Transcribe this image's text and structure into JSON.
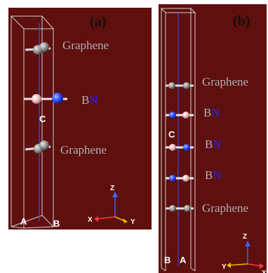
{
  "panel_a": {
    "label": "(a)",
    "layers": [
      {
        "label": "Graphene"
      },
      {
        "label_b": "B",
        "label_n": "N"
      },
      {
        "label": "Graphene"
      }
    ],
    "cell_axes": {
      "c": "C",
      "a": "A",
      "b": "B"
    },
    "triad": {
      "x": "X",
      "y": "Y",
      "z": "Z"
    }
  },
  "panel_b": {
    "label": "(b)",
    "layers": [
      {
        "label": "Graphene"
      },
      {
        "label_b": "B",
        "label_n": "N"
      },
      {
        "label_b": "B",
        "label_n": "N"
      },
      {
        "label_b": "B",
        "label_n": "N"
      },
      {
        "label": "Graphene"
      }
    ],
    "cell_axes": {
      "c": "C",
      "a": "A",
      "b": "B"
    },
    "triad": {
      "x": "X",
      "y": "Y",
      "z": "Z"
    }
  },
  "colors": {
    "background": "#5e0f0e",
    "carbon": "#9a9a9a",
    "boron": "#f2c8c8",
    "nitrogen": "#2b4bff",
    "label_gray": "#b0b0b0",
    "label_n": "#1a2bff"
  }
}
